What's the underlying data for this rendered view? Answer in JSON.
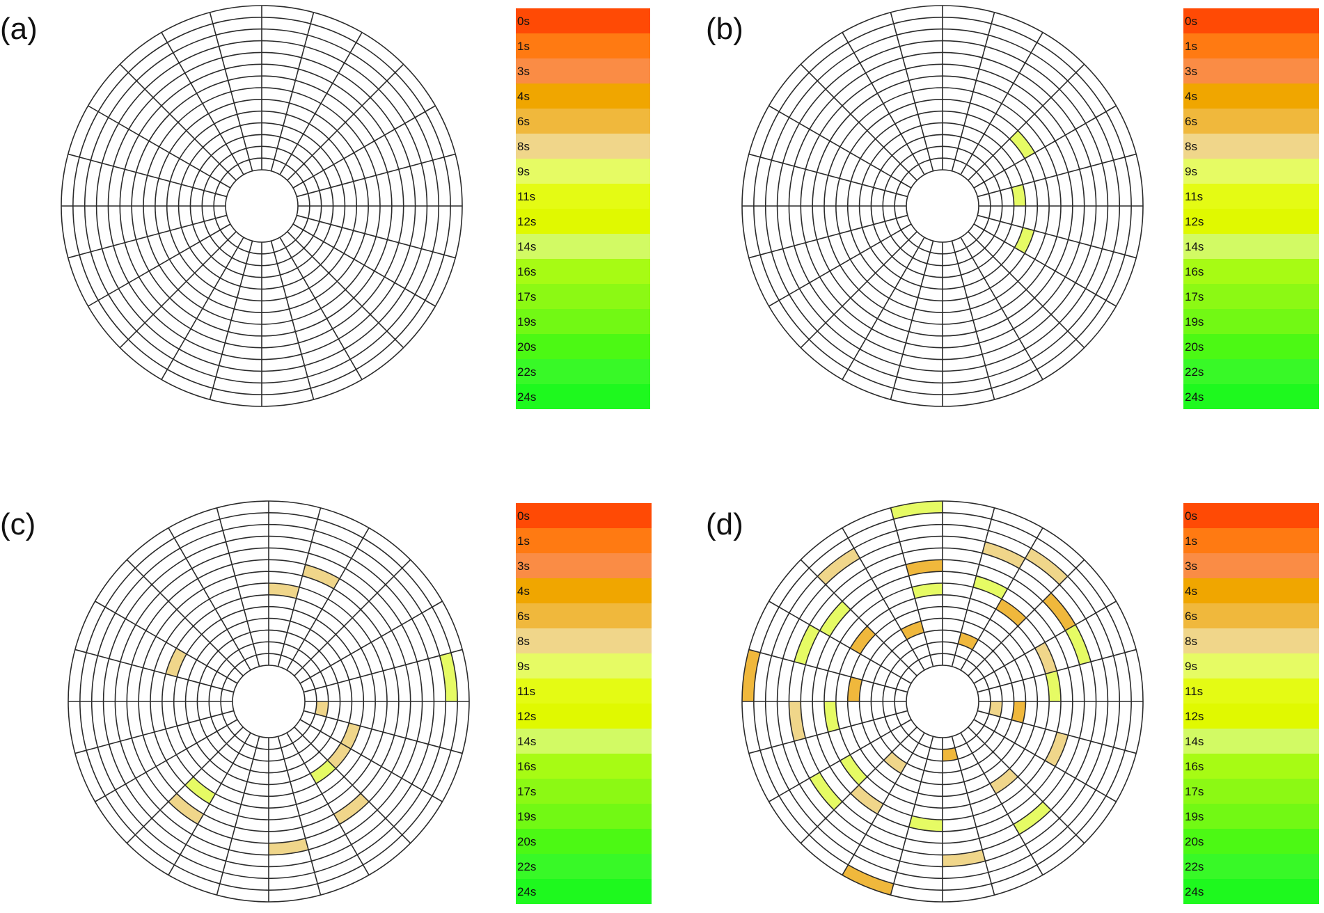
{
  "legend": {
    "labels": [
      "0s",
      "1s",
      "3s",
      "4s",
      "6s",
      "8s",
      "9s",
      "11s",
      "12s",
      "14s",
      "16s",
      "17s",
      "19s",
      "20s",
      "22s",
      "24s"
    ],
    "colors": [
      "#ff4a05",
      "#ff7a12",
      "#fa8c45",
      "#f0a600",
      "#f0b83c",
      "#f0d68a",
      "#e6fb64",
      "#e4fb14",
      "#e0f900",
      "#d2fa64",
      "#a7fb14",
      "#8cf914",
      "#72f914",
      "#4cf914",
      "#38f927",
      "#1ef91e"
    ]
  },
  "panels": [
    {
      "label": "(a)",
      "cells": []
    },
    {
      "label": "(b)",
      "cells": [
        {
          "spoke": 2,
          "ring": 5,
          "color_index": 6
        },
        {
          "spoke": 0,
          "ring": 3,
          "color_index": 6
        },
        {
          "spoke": 22,
          "ring": 4,
          "color_index": 6
        }
      ]
    },
    {
      "label": "(c)",
      "cells": [
        {
          "spoke": 5,
          "ring": 6,
          "color_index": 5
        },
        {
          "spoke": 4,
          "ring": 8,
          "color_index": 5
        },
        {
          "spoke": 10,
          "ring": 5,
          "color_index": 5
        },
        {
          "spoke": 0,
          "ring": 12,
          "color_index": 6
        },
        {
          "spoke": 23,
          "ring": 1,
          "color_index": 5
        },
        {
          "spoke": 22,
          "ring": 4,
          "color_index": 5
        },
        {
          "spoke": 21,
          "ring": 4,
          "color_index": 5
        },
        {
          "spoke": 20,
          "ring": 8,
          "color_index": 5
        },
        {
          "spoke": 20,
          "ring": 4,
          "color_index": 6
        },
        {
          "spoke": 15,
          "ring": 8,
          "color_index": 5
        },
        {
          "spoke": 15,
          "ring": 6,
          "color_index": 6
        },
        {
          "spoke": 18,
          "ring": 9,
          "color_index": 5
        }
      ]
    },
    {
      "label": "(d)",
      "cells": [
        {
          "spoke": 6,
          "ring": 13,
          "color_index": 6
        },
        {
          "spoke": 8,
          "ring": 11,
          "color_index": 5
        },
        {
          "spoke": 6,
          "ring": 8,
          "color_index": 4
        },
        {
          "spoke": 6,
          "ring": 6,
          "color_index": 6
        },
        {
          "spoke": 4,
          "ring": 10,
          "color_index": 5
        },
        {
          "spoke": 3,
          "ring": 11,
          "color_index": 5
        },
        {
          "spoke": 4,
          "ring": 7,
          "color_index": 6
        },
        {
          "spoke": 3,
          "ring": 6,
          "color_index": 4
        },
        {
          "spoke": 1,
          "ring": 9,
          "color_index": 6
        },
        {
          "spoke": 1,
          "ring": 6,
          "color_index": 5
        },
        {
          "spoke": 4,
          "ring": 2,
          "color_index": 4
        },
        {
          "spoke": 2,
          "ring": 9,
          "color_index": 4
        },
        {
          "spoke": 10,
          "ring": 9,
          "color_index": 6
        },
        {
          "spoke": 9,
          "ring": 8,
          "color_index": 6
        },
        {
          "spoke": 9,
          "ring": 5,
          "color_index": 4
        },
        {
          "spoke": 7,
          "ring": 3,
          "color_index": 4
        },
        {
          "spoke": 11,
          "ring": 13,
          "color_index": 4
        },
        {
          "spoke": 11,
          "ring": 4,
          "color_index": 4
        },
        {
          "spoke": 12,
          "ring": 9,
          "color_index": 5
        },
        {
          "spoke": 12,
          "ring": 6,
          "color_index": 6
        },
        {
          "spoke": 0,
          "ring": 6,
          "color_index": 6
        },
        {
          "spoke": 23,
          "ring": 1,
          "color_index": 5
        },
        {
          "spoke": 23,
          "ring": 3,
          "color_index": 4
        },
        {
          "spoke": 22,
          "ring": 7,
          "color_index": 5
        },
        {
          "spoke": 14,
          "ring": 9,
          "color_index": 6
        },
        {
          "spoke": 14,
          "ring": 6,
          "color_index": 6
        },
        {
          "spoke": 15,
          "ring": 3,
          "color_index": 5
        },
        {
          "spoke": 15,
          "ring": 7,
          "color_index": 5
        },
        {
          "spoke": 18,
          "ring": 1,
          "color_index": 4
        },
        {
          "spoke": 17,
          "ring": 7,
          "color_index": 6
        },
        {
          "spoke": 18,
          "ring": 10,
          "color_index": 5
        },
        {
          "spoke": 16,
          "ring": 13,
          "color_index": 4
        },
        {
          "spoke": 20,
          "ring": 5,
          "color_index": 5
        },
        {
          "spoke": 20,
          "ring": 9,
          "color_index": 6
        }
      ]
    }
  ]
}
